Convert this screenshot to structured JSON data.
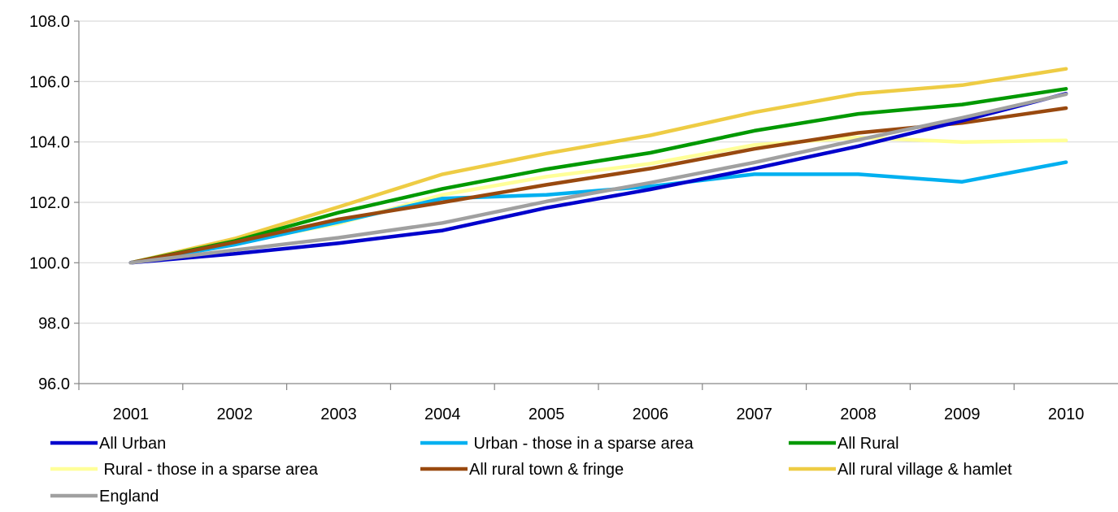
{
  "chart_data": {
    "type": "line",
    "title": "",
    "xlabel": "",
    "ylabel": "",
    "x": [
      "2001",
      "2002",
      "2003",
      "2004",
      "2005",
      "2006",
      "2007",
      "2008",
      "2009",
      "2010"
    ],
    "ylim": [
      96.0,
      108.0
    ],
    "y_ticks": [
      "96.0",
      "98.0",
      "100.0",
      "102.0",
      "104.0",
      "106.0",
      "108.0"
    ],
    "grid": "horizontal",
    "legend_position": "bottom",
    "series": [
      {
        "name": "All Urban",
        "color": "#0000CC",
        "values": [
          100.0,
          100.3,
          100.65,
          101.07,
          101.82,
          102.43,
          103.12,
          103.86,
          104.7,
          105.6
        ]
      },
      {
        "name": " Urban - those in a sparse area",
        "color": "#00B0F0",
        "values": [
          100.0,
          100.6,
          101.35,
          102.13,
          102.25,
          102.53,
          102.93,
          102.93,
          102.68,
          103.33
        ]
      },
      {
        "name": "All Rural",
        "color": "#009900",
        "values": [
          100.0,
          100.72,
          101.66,
          102.45,
          103.1,
          103.64,
          104.37,
          104.93,
          105.24,
          105.76
        ]
      },
      {
        "name": " Rural - those in a sparse area",
        "color": "#FFFF99",
        "values": [
          100.0,
          100.65,
          101.3,
          102.25,
          102.85,
          103.28,
          103.9,
          104.15,
          104.0,
          104.05
        ]
      },
      {
        "name": "All rural town & fringe",
        "color": "#99490F",
        "values": [
          100.0,
          100.68,
          101.44,
          102.0,
          102.58,
          103.12,
          103.77,
          104.3,
          104.63,
          105.12
        ]
      },
      {
        "name": "All rural village & hamlet",
        "color": "#EECC44",
        "values": [
          100.0,
          100.8,
          101.85,
          102.93,
          103.62,
          104.22,
          104.98,
          105.6,
          105.88,
          106.42
        ]
      },
      {
        "name": "England",
        "color": "#A0A0A0",
        "values": [
          100.0,
          100.42,
          100.83,
          101.32,
          102.03,
          102.65,
          103.32,
          104.07,
          104.8,
          105.58
        ]
      }
    ]
  }
}
